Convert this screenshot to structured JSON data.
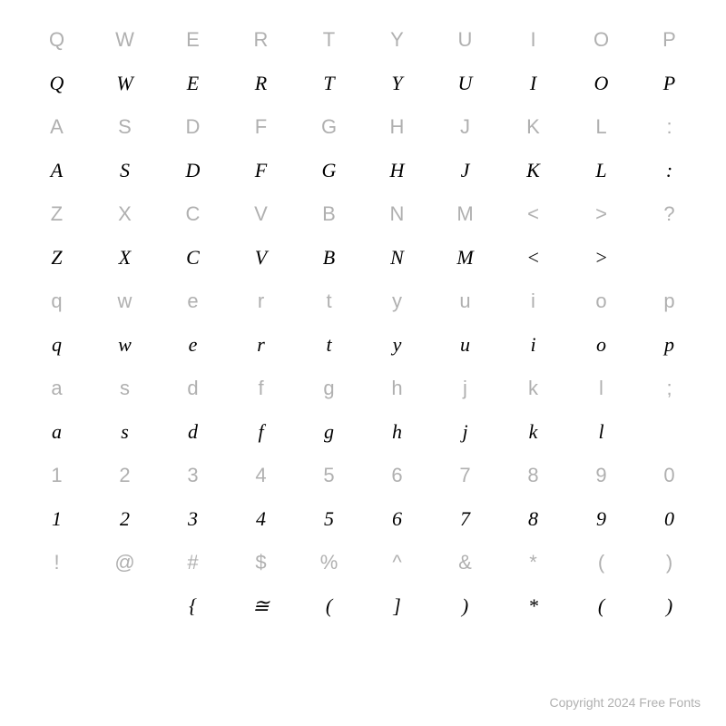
{
  "chart": {
    "type": "character-map",
    "columns": 10,
    "rows": [
      {
        "kind": "ref",
        "cells": [
          "Q",
          "W",
          "E",
          "R",
          "T",
          "Y",
          "U",
          "I",
          "O",
          "P"
        ]
      },
      {
        "kind": "glyph",
        "cells": [
          "Q",
          "W",
          "E",
          "R",
          "T",
          "Y",
          "U",
          "I",
          "O",
          "P"
        ]
      },
      {
        "kind": "ref",
        "cells": [
          "A",
          "S",
          "D",
          "F",
          "G",
          "H",
          "J",
          "K",
          "L",
          ":"
        ]
      },
      {
        "kind": "glyph",
        "cells": [
          "A",
          "S",
          "D",
          "F",
          "G",
          "H",
          "J",
          "K",
          "L",
          ":"
        ]
      },
      {
        "kind": "ref",
        "cells": [
          "Z",
          "X",
          "C",
          "V",
          "B",
          "N",
          "M",
          "<",
          ">",
          "?"
        ]
      },
      {
        "kind": "glyph",
        "cells": [
          "Z",
          "X",
          "C",
          "V",
          "B",
          "N",
          "M",
          "<",
          ">",
          ""
        ]
      },
      {
        "kind": "ref",
        "cells": [
          "q",
          "w",
          "e",
          "r",
          "t",
          "y",
          "u",
          "i",
          "o",
          "p"
        ]
      },
      {
        "kind": "glyph",
        "cells": [
          "q",
          "w",
          "e",
          "r",
          "t",
          "y",
          "u",
          "i",
          "o",
          "p"
        ]
      },
      {
        "kind": "ref",
        "cells": [
          "a",
          "s",
          "d",
          "f",
          "g",
          "h",
          "j",
          "k",
          "l",
          ";"
        ]
      },
      {
        "kind": "glyph",
        "cells": [
          "a",
          "s",
          "d",
          "f",
          "g",
          "h",
          "j",
          "k",
          "l",
          ""
        ]
      },
      {
        "kind": "ref",
        "cells": [
          "1",
          "2",
          "3",
          "4",
          "5",
          "6",
          "7",
          "8",
          "9",
          "0"
        ]
      },
      {
        "kind": "glyph",
        "cells": [
          "1",
          "2",
          "3",
          "4",
          "5",
          "6",
          "7",
          "8",
          "9",
          "0"
        ]
      },
      {
        "kind": "ref",
        "cells": [
          "!",
          "@",
          "#",
          "$",
          "%",
          "^",
          "&",
          "*",
          "(",
          ")"
        ]
      },
      {
        "kind": "glyph",
        "cells": [
          "",
          "",
          "{",
          "≅",
          "(",
          "]",
          ")",
          "*",
          "(",
          ")"
        ]
      }
    ],
    "colors": {
      "background": "#ffffff",
      "ref_text": "#b0b0b0",
      "glyph_text": "#000000"
    },
    "typography": {
      "ref_font": "sans-serif",
      "glyph_font": "serif-italic",
      "cell_fontsize_pt": 17,
      "footer_fontsize_pt": 11
    }
  },
  "footer": {
    "text": "Copyright 2024 Free Fonts"
  }
}
